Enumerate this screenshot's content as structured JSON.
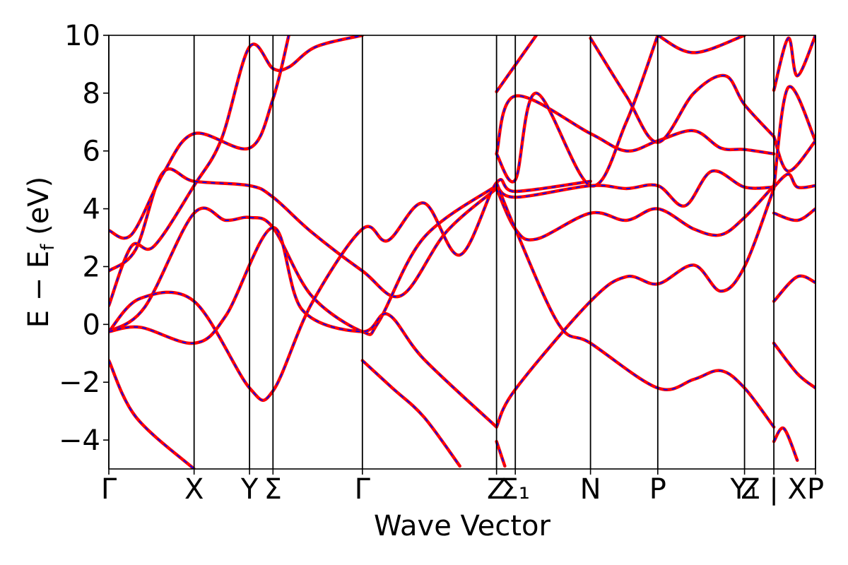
{
  "chart_data": {
    "type": "line",
    "xlabel": "Wave Vector",
    "ylabel": "E − E",
    "ylabel_sub": "f",
    "ylabel_unit": " (eV)",
    "ylim": [
      -5,
      10
    ],
    "yticks": [
      -4,
      -2,
      0,
      2,
      4,
      6,
      8,
      10
    ],
    "ytick_labels": [
      "−4",
      "−2",
      "0",
      "2",
      "4",
      "6",
      "8",
      "10"
    ],
    "xlim": [
      0,
      1
    ],
    "kpoints": [
      {
        "label": "Γ",
        "x": 0.0
      },
      {
        "label": "X",
        "x": 0.1895
      },
      {
        "label": "Y",
        "x": 0.3127
      },
      {
        "label": "Σ",
        "x": 0.3648
      },
      {
        "label": "Γ",
        "x": 0.5635
      },
      {
        "label": "Z",
        "x": 0.8616
      },
      {
        "label": "Σ₁",
        "x": 0.9033
      },
      {
        "label": "N",
        "x": 1.0704
      },
      {
        "label": "P",
        "x": 1.2199
      },
      {
        "label": "Y₁",
        "x": 1.4127
      },
      {
        "label": "Z | X",
        "x": 1.4779
      },
      {
        "label": "P",
        "x": 1.5704
      }
    ],
    "x_max": 1.5704,
    "grid": false,
    "series": [
      {
        "color": "#ff0000",
        "style": "solid",
        "bands": [
          [
            [
              0,
              0.65
            ],
            [
              0.05,
              2.7
            ],
            [
              0.1,
              2.7
            ],
            [
              0.1895,
              4.8
            ],
            [
              0.25,
              6.4
            ],
            [
              0.3127,
              9.6
            ],
            [
              0.3648,
              8.85
            ],
            [
              0.4,
              8.9
            ],
            [
              0.46,
              9.6
            ],
            [
              0.5635,
              10
            ]
          ],
          [
            [
              0,
              1.85
            ],
            [
              0.06,
              2.6
            ],
            [
              0.12,
              5.25
            ],
            [
              0.1895,
              4.95
            ],
            [
              0.3127,
              4.8
            ],
            [
              0.3648,
              4.4
            ],
            [
              0.45,
              3.2
            ],
            [
              0.5635,
              1.85
            ],
            [
              0.65,
              1.0
            ],
            [
              0.75,
              3.2
            ],
            [
              0.8616,
              4.7
            ]
          ],
          [
            [
              0,
              3.25
            ],
            [
              0.05,
              3.1
            ],
            [
              0.12,
              5.2
            ],
            [
              0.1895,
              6.6
            ],
            [
              0.3127,
              6.1
            ],
            [
              0.3648,
              7.8
            ],
            [
              0.4,
              10
            ]
          ],
          [
            [
              0,
              -0.25
            ],
            [
              0.08,
              0.6
            ],
            [
              0.1895,
              3.85
            ],
            [
              0.26,
              3.6
            ],
            [
              0.3127,
              3.7
            ],
            [
              0.3648,
              3.35
            ],
            [
              0.45,
              1.0
            ],
            [
              0.5635,
              -0.25
            ],
            [
              0.6,
              0.1
            ],
            [
              0.7,
              3.0
            ],
            [
              0.8616,
              4.8
            ]
          ],
          [
            [
              0,
              -0.25
            ],
            [
              0.07,
              0.9
            ],
            [
              0.1895,
              0.8
            ],
            [
              0.3127,
              -2.2
            ],
            [
              0.3648,
              -2.3
            ],
            [
              0.45,
              0.7
            ],
            [
              0.5635,
              3.3
            ],
            [
              0.62,
              2.9
            ],
            [
              0.7,
              4.2
            ],
            [
              0.78,
              2.4
            ],
            [
              0.8616,
              4.9
            ],
            [
              0.9033,
              4.6
            ],
            [
              1.0704,
              4.95
            ]
          ],
          [
            [
              0,
              -0.25
            ],
            [
              0.07,
              -0.1
            ],
            [
              0.1895,
              -0.65
            ],
            [
              0.26,
              0.3
            ],
            [
              0.3648,
              3.35
            ],
            [
              0.43,
              0.5
            ],
            [
              0.5635,
              -0.25
            ],
            [
              0.62,
              0.35
            ],
            [
              0.7,
              -1.2
            ],
            [
              0.8616,
              -3.55
            ]
          ],
          [
            [
              0,
              -1.25
            ],
            [
              0.06,
              -3.2
            ],
            [
              0.1895,
              -5.0
            ]
          ],
          [
            [
              0.5635,
              -1.25
            ],
            [
              0.63,
              -2.2
            ],
            [
              0.7,
              -3.2
            ],
            [
              0.78,
              -4.9
            ]
          ],
          [
            [
              0.8616,
              -3.55
            ],
            [
              0.9033,
              -2.25
            ],
            [
              1.0704,
              0.8
            ],
            [
              1.15,
              1.65
            ],
            [
              1.2199,
              1.4
            ],
            [
              1.3,
              2.05
            ],
            [
              1.36,
              1.15
            ],
            [
              1.4127,
              2.0
            ],
            [
              1.4779,
              4.7
            ]
          ],
          [
            [
              0.8616,
              4.7
            ],
            [
              0.9033,
              3.3
            ],
            [
              0.95,
              2.95
            ],
            [
              1.0704,
              3.85
            ],
            [
              1.15,
              3.6
            ],
            [
              1.2199,
              4.0
            ],
            [
              1.3,
              3.3
            ],
            [
              1.36,
              3.1
            ],
            [
              1.4127,
              3.7
            ],
            [
              1.4779,
              4.8
            ]
          ],
          [
            [
              0.8616,
              4.8
            ],
            [
              0.9033,
              4.4
            ],
            [
              1.0704,
              4.8
            ],
            [
              1.15,
              4.7
            ],
            [
              1.2199,
              4.8
            ],
            [
              1.28,
              4.1
            ],
            [
              1.34,
              5.3
            ],
            [
              1.4127,
              4.75
            ],
            [
              1.4779,
              4.75
            ]
          ],
          [
            [
              0.8616,
              5.9
            ],
            [
              0.9033,
              7.9
            ],
            [
              1.0704,
              6.6
            ],
            [
              1.15,
              6.0
            ],
            [
              1.2199,
              6.35
            ],
            [
              1.3,
              6.7
            ],
            [
              1.36,
              6.1
            ],
            [
              1.4127,
              6.05
            ],
            [
              1.4779,
              5.9
            ]
          ],
          [
            [
              0.8616,
              8.05
            ],
            [
              0.9,
              8.9
            ],
            [
              0.95,
              10
            ]
          ],
          [
            [
              0.8616,
              4.9
            ],
            [
              0.9033,
              3.3
            ],
            [
              1.0,
              0.0
            ],
            [
              1.0704,
              -0.65
            ],
            [
              1.2199,
              -2.2
            ],
            [
              1.3,
              -1.9
            ],
            [
              1.36,
              -1.6
            ],
            [
              1.4127,
              -2.2
            ],
            [
              1.4779,
              -3.55
            ]
          ],
          [
            [
              0.8616,
              5.9
            ],
            [
              0.9033,
              5.0
            ],
            [
              0.95,
              8.0
            ],
            [
              1.0704,
              4.8
            ],
            [
              1.15,
              7.0
            ],
            [
              1.2199,
              10
            ]
          ],
          [
            [
              1.0704,
              9.9
            ],
            [
              1.15,
              7.9
            ],
            [
              1.2199,
              6.3
            ],
            [
              1.3,
              8.0
            ],
            [
              1.37,
              8.6
            ],
            [
              1.4127,
              7.6
            ],
            [
              1.4779,
              6.5
            ]
          ],
          [
            [
              1.2199,
              10
            ],
            [
              1.3,
              9.4
            ],
            [
              1.4127,
              10
            ]
          ],
          [
            [
              1.4779,
              0.8
            ],
            [
              1.53,
              1.65
            ],
            [
              1.5704,
              1.45
            ]
          ],
          [
            [
              1.4779,
              3.85
            ],
            [
              1.53,
              3.6
            ],
            [
              1.5704,
              4.0
            ]
          ],
          [
            [
              1.4779,
              4.75
            ],
            [
              1.51,
              5.2
            ],
            [
              1.53,
              4.75
            ],
            [
              1.5704,
              4.8
            ]
          ],
          [
            [
              1.4779,
              6.5
            ],
            [
              1.51,
              5.3
            ],
            [
              1.5704,
              6.35
            ]
          ],
          [
            [
              1.4779,
              -0.65
            ],
            [
              1.53,
              -1.7
            ],
            [
              1.5704,
              -2.2
            ]
          ],
          [
            [
              1.4779,
              -4.05
            ],
            [
              1.5,
              -3.6
            ],
            [
              1.53,
              -4.7
            ]
          ],
          [
            [
              1.4779,
              8.1
            ],
            [
              1.51,
              9.9
            ],
            [
              1.53,
              8.6
            ],
            [
              1.5704,
              10
            ]
          ],
          [
            [
              1.4779,
              4.75
            ],
            [
              1.51,
              8.2
            ],
            [
              1.5704,
              6.35
            ]
          ],
          [
            [
              0.8616,
              -4.05
            ],
            [
              0.88,
              -4.9
            ]
          ]
        ]
      },
      {
        "color": "#0000ff",
        "style": "dashed"
      }
    ]
  }
}
